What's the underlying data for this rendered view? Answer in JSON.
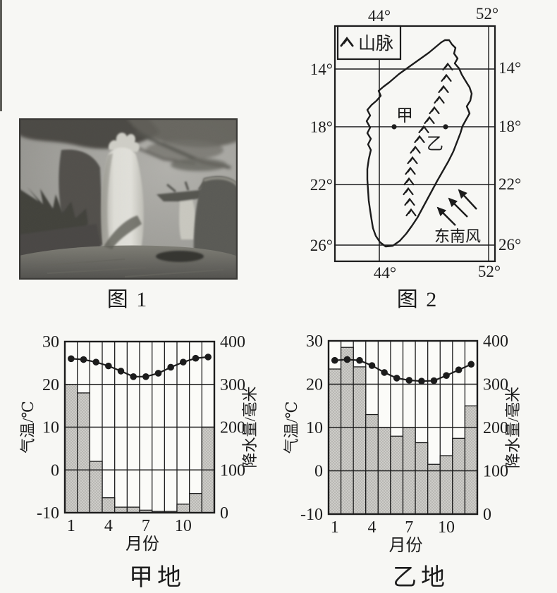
{
  "page": {
    "background": "#f7f7f4",
    "ink": "#1c1c1c",
    "bar_fill": "#cdccc8",
    "bar_dot": "#8e8d89"
  },
  "figure1": {
    "caption": "图 1"
  },
  "figure2": {
    "caption": "图 2",
    "legend_label": "山脉",
    "legend_icon": "mountain-range-icon",
    "lon_top": [
      "44°",
      "52°"
    ],
    "lon_bottom": [
      "44°",
      "52°"
    ],
    "lat_left": [
      "14°",
      "18°",
      "22°",
      "26°"
    ],
    "lat_right": [
      "14°",
      "18°",
      "22°",
      "26°"
    ],
    "point_a": "甲",
    "point_b": "乙",
    "wind_label": "东南风"
  },
  "chart_data": [
    {
      "type": "bar+line",
      "title": "甲地",
      "xlabel": "月份",
      "months": [
        1,
        2,
        3,
        4,
        5,
        6,
        7,
        8,
        9,
        10,
        11,
        12
      ],
      "x_tick_months": [
        1,
        4,
        7,
        10
      ],
      "x_tick_labels": [
        "1",
        "4",
        "7",
        "10"
      ],
      "left_axis": {
        "label": "气温/℃",
        "range": [
          -10,
          30
        ],
        "ticks": [
          "30",
          "20",
          "10",
          "0",
          "-10"
        ],
        "tick_values": [
          30,
          20,
          10,
          0,
          -10
        ]
      },
      "right_axis": {
        "label": "降水量/毫米",
        "range": [
          0,
          400
        ],
        "ticks": [
          "400",
          "300",
          "200",
          "100",
          "0"
        ],
        "tick_values": [
          400,
          300,
          200,
          100,
          0
        ]
      },
      "grid": true,
      "series": [
        {
          "name": "降水量",
          "type": "bar",
          "axis": "right",
          "values": [
            300,
            280,
            120,
            35,
            13,
            13,
            6,
            3,
            3,
            20,
            45,
            200
          ]
        },
        {
          "name": "气温",
          "type": "line",
          "axis": "left",
          "values": [
            26,
            25.8,
            25.2,
            24.3,
            23.1,
            21.8,
            21.8,
            22.6,
            24,
            25.2,
            26.1,
            26.4
          ]
        }
      ]
    },
    {
      "type": "bar+line",
      "title": "乙地",
      "xlabel": "月份",
      "months": [
        1,
        2,
        3,
        4,
        5,
        6,
        7,
        8,
        9,
        10,
        11,
        12
      ],
      "x_tick_months": [
        1,
        4,
        7,
        10
      ],
      "x_tick_labels": [
        "1",
        "4",
        "7",
        "10"
      ],
      "left_axis": {
        "label": "气温/℃",
        "range": [
          -10,
          30
        ],
        "ticks": [
          "30",
          "20",
          "10",
          "0",
          "-10"
        ],
        "tick_values": [
          30,
          20,
          10,
          0,
          -10
        ]
      },
      "right_axis": {
        "label": "降水量/毫米",
        "range": [
          0,
          400
        ],
        "ticks": [
          "400",
          "300",
          "200",
          "100",
          "0"
        ],
        "tick_values": [
          400,
          300,
          200,
          100,
          0
        ]
      },
      "grid": true,
      "series": [
        {
          "name": "降水量",
          "type": "bar",
          "axis": "right",
          "values": [
            335,
            385,
            340,
            230,
            200,
            180,
            200,
            165,
            115,
            135,
            175,
            250
          ]
        },
        {
          "name": "气温",
          "type": "line",
          "axis": "left",
          "values": [
            25.5,
            25.7,
            25.5,
            24.3,
            22.7,
            21.4,
            20.9,
            20.7,
            20.8,
            22,
            23.3,
            24.6
          ]
        }
      ]
    }
  ]
}
